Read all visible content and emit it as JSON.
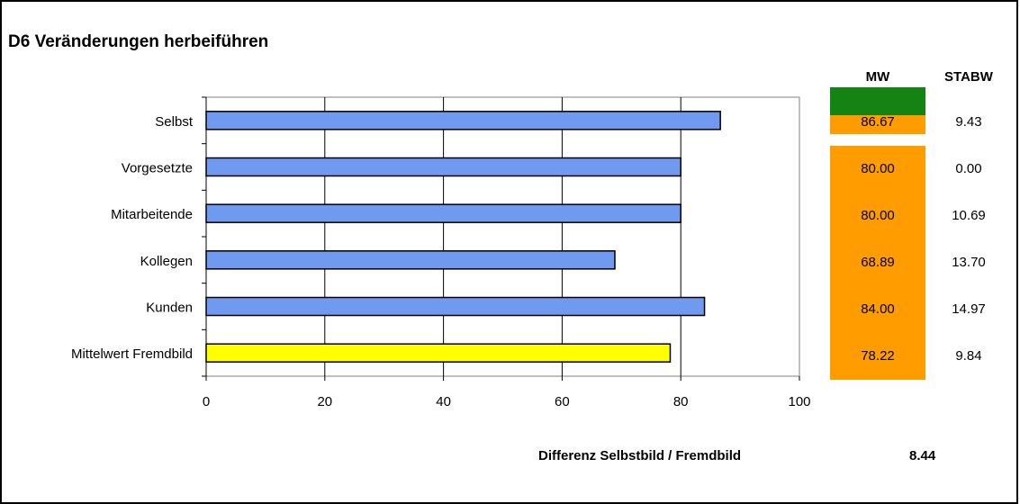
{
  "title": "D6 Veränderungen herbeiführen",
  "chart_data": {
    "type": "bar",
    "orientation": "horizontal",
    "categories": [
      "Selbst",
      "Vorgesetzte",
      "Mitarbeitende",
      "Kollegen",
      "Kunden",
      "Mittelwert Fremdbild"
    ],
    "values": [
      86.67,
      80.0,
      80.0,
      68.89,
      84.0,
      78.22
    ],
    "xlim": [
      0,
      100
    ],
    "xticks": [
      "0",
      "20",
      "40",
      "60",
      "80",
      "100"
    ],
    "xlabel": "",
    "ylabel": "",
    "grid": "vertical",
    "colors": {
      "bar": "#6f9af0",
      "highlight_bar": "#ffff00",
      "edge": "#000000"
    }
  },
  "table": {
    "headers": {
      "mw": "MW",
      "stabw": "STABW"
    },
    "mw": [
      "86.67",
      "80.00",
      "80.00",
      "68.89",
      "84.00",
      "78.22"
    ],
    "stabw": [
      "9.43",
      "0.00",
      "10.69",
      "13.70",
      "14.97",
      "9.84"
    ],
    "colors": {
      "top": "#138413",
      "rest": "#ff9c00"
    }
  },
  "difference": {
    "label": "Differenz Selbstbild / Fremdbild",
    "value": "8.44"
  }
}
